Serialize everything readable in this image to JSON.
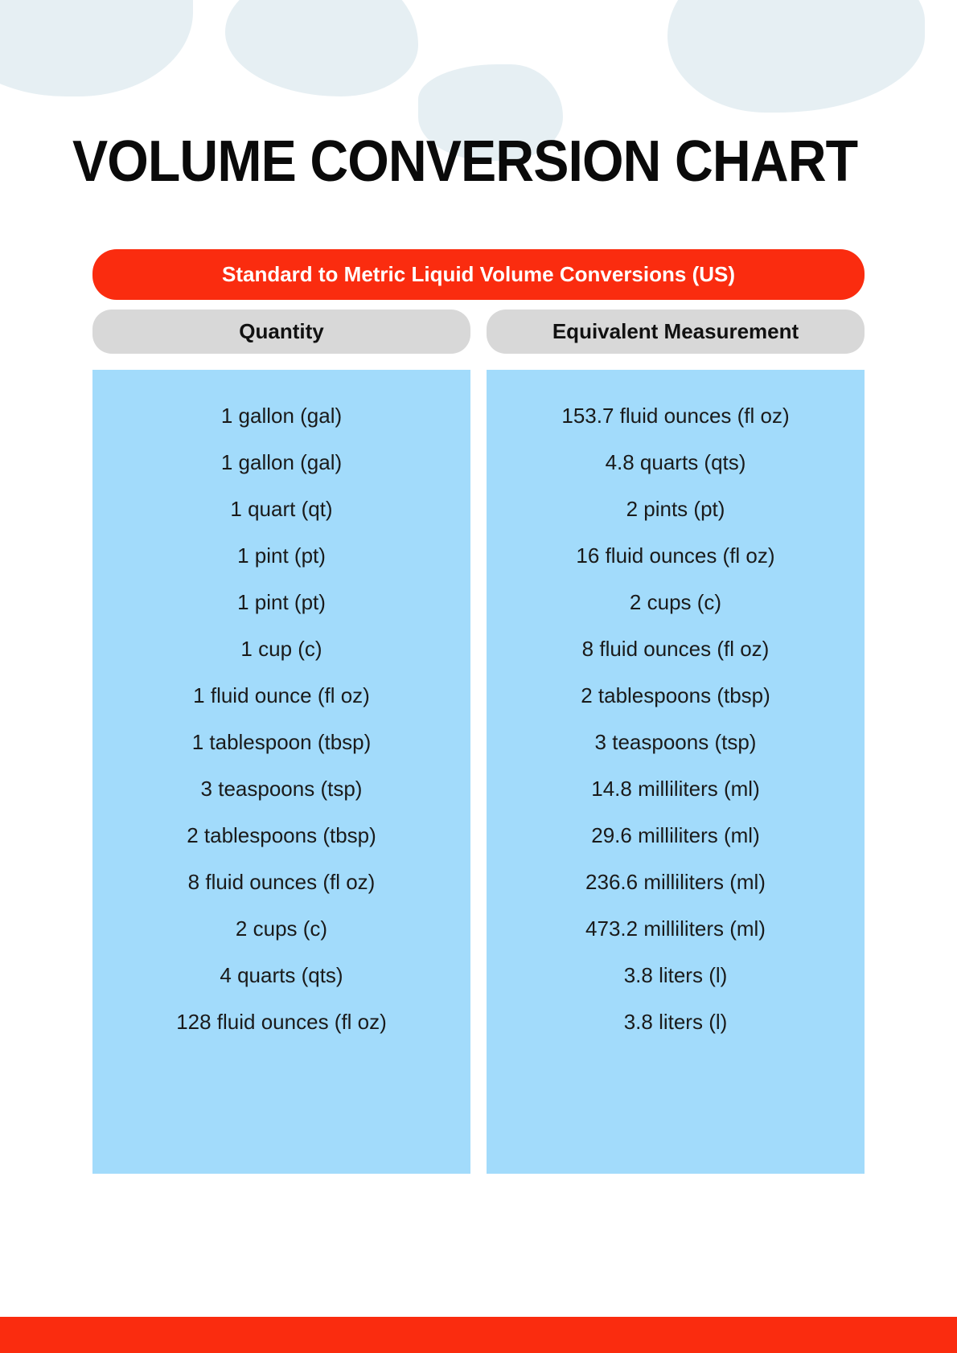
{
  "title": "VOLUME CONVERSION CHART",
  "subtitle": "Standard to Metric Liquid Volume Conversions (US)",
  "colors": {
    "accent": "#fa2c0f",
    "header_bg": "#d8d8d8",
    "data_bg": "#a2dbfb",
    "text_dark": "#1a1a1a",
    "text_light": "#ffffff",
    "bg_blob": "#e6eff3",
    "page_bg": "#ffffff"
  },
  "typography": {
    "title_fontsize": 72,
    "title_weight": 900,
    "subtitle_fontsize": 26,
    "subtitle_weight": 700,
    "header_fontsize": 26,
    "header_weight": 700,
    "body_fontsize": 26,
    "body_weight": 400
  },
  "table": {
    "type": "table",
    "columns": [
      "Quantity",
      "Equivalent Measurement"
    ],
    "rows": [
      [
        "1 gallon (gal)",
        "153.7 fluid ounces (fl oz)"
      ],
      [
        "1 gallon (gal)",
        "4.8 quarts (qts)"
      ],
      [
        "1 quart (qt)",
        "2 pints (pt)"
      ],
      [
        "1 pint (pt)",
        "16 fluid ounces (fl oz)"
      ],
      [
        "1 pint (pt)",
        "2 cups (c)"
      ],
      [
        "1 cup (c)",
        "8 fluid ounces (fl oz)"
      ],
      [
        "1 fluid ounce (fl oz)",
        "2 tablespoons (tbsp)"
      ],
      [
        "1 tablespoon (tbsp)",
        "3 teaspoons (tsp)"
      ],
      [
        "3 teaspoons (tsp)",
        "14.8 milliliters (ml)"
      ],
      [
        "2 tablespoons (tbsp)",
        "29.6 milliliters (ml)"
      ],
      [
        "8 fluid ounces (fl oz)",
        "236.6 milliliters (ml)"
      ],
      [
        "2 cups (c)",
        "473.2 milliliters (ml)"
      ],
      [
        "4 quarts (qts)",
        "3.8 liters (l)"
      ],
      [
        "128 fluid ounces (fl oz)",
        "3.8 liters (l)"
      ]
    ]
  }
}
